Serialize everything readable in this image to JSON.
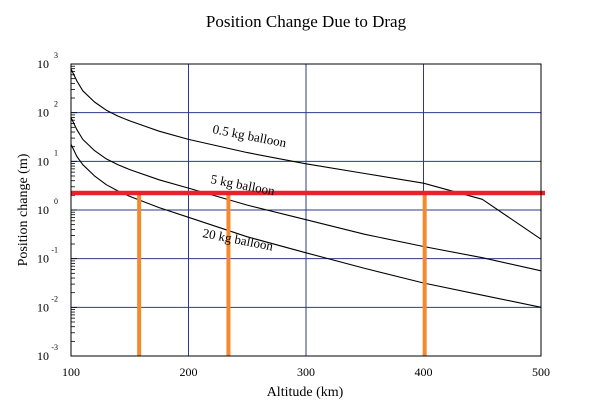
{
  "chart_data": {
    "type": "line",
    "title": "Position Change Due to Drag",
    "xlabel": "Altitude (km)",
    "ylabel": "Position change (m)",
    "xlim": [
      100,
      500
    ],
    "ylim_exp": [
      -3,
      3
    ],
    "log_y": true,
    "grid": true,
    "x_ticks": [
      {
        "value": 100,
        "label": "100"
      },
      {
        "value": 200,
        "label": "200"
      },
      {
        "value": 300,
        "label": "300"
      },
      {
        "value": 400,
        "label": "400"
      },
      {
        "value": 500,
        "label": "500"
      }
    ],
    "y_ticks": [
      {
        "exp": 3,
        "base": "10",
        "sup": "3"
      },
      {
        "exp": 2,
        "base": "10",
        "sup": "2"
      },
      {
        "exp": 1,
        "base": "10",
        "sup": "1"
      },
      {
        "exp": 0,
        "base": "10",
        "sup": "0"
      },
      {
        "exp": -1,
        "base": "10",
        "sup": "-1"
      },
      {
        "exp": -2,
        "base": "10",
        "sup": "-2"
      },
      {
        "exp": -3,
        "base": "10",
        "sup": "-3"
      }
    ],
    "series": [
      {
        "name": "0.5 kg balloon",
        "x": [
          100,
          105,
          110,
          120,
          130,
          140,
          150,
          175,
          200,
          250,
          300,
          350,
          400,
          450,
          500
        ],
        "log10_y": [
          2.9,
          2.65,
          2.45,
          2.22,
          2.05,
          1.93,
          1.83,
          1.62,
          1.45,
          1.18,
          0.95,
          0.75,
          0.55,
          0.22,
          -0.6
        ],
        "annotation": "0.5 kg balloon"
      },
      {
        "name": "5 kg balloon",
        "x": [
          100,
          105,
          110,
          120,
          130,
          140,
          150,
          175,
          200,
          250,
          300,
          350,
          400,
          450,
          500
        ],
        "log10_y": [
          1.9,
          1.65,
          1.45,
          1.22,
          1.05,
          0.93,
          0.83,
          0.62,
          0.45,
          0.1,
          -0.2,
          -0.5,
          -0.75,
          -0.98,
          -1.25
        ],
        "annotation": "5 kg balloon"
      },
      {
        "name": "20 kg balloon",
        "x": [
          100,
          105,
          110,
          120,
          130,
          140,
          150,
          175,
          200,
          250,
          300,
          350,
          400,
          450,
          500
        ],
        "log10_y": [
          1.35,
          1.1,
          0.93,
          0.7,
          0.52,
          0.39,
          0.28,
          0.05,
          -0.15,
          -0.55,
          -0.88,
          -1.2,
          -1.5,
          -1.75,
          -2.0
        ],
        "annotation": "20 kg balloon"
      }
    ],
    "threshold": {
      "log10_y": 0.35,
      "color": "#e8222a"
    },
    "markers": {
      "x": [
        158,
        234,
        401
      ],
      "color": "#f5892e"
    }
  }
}
